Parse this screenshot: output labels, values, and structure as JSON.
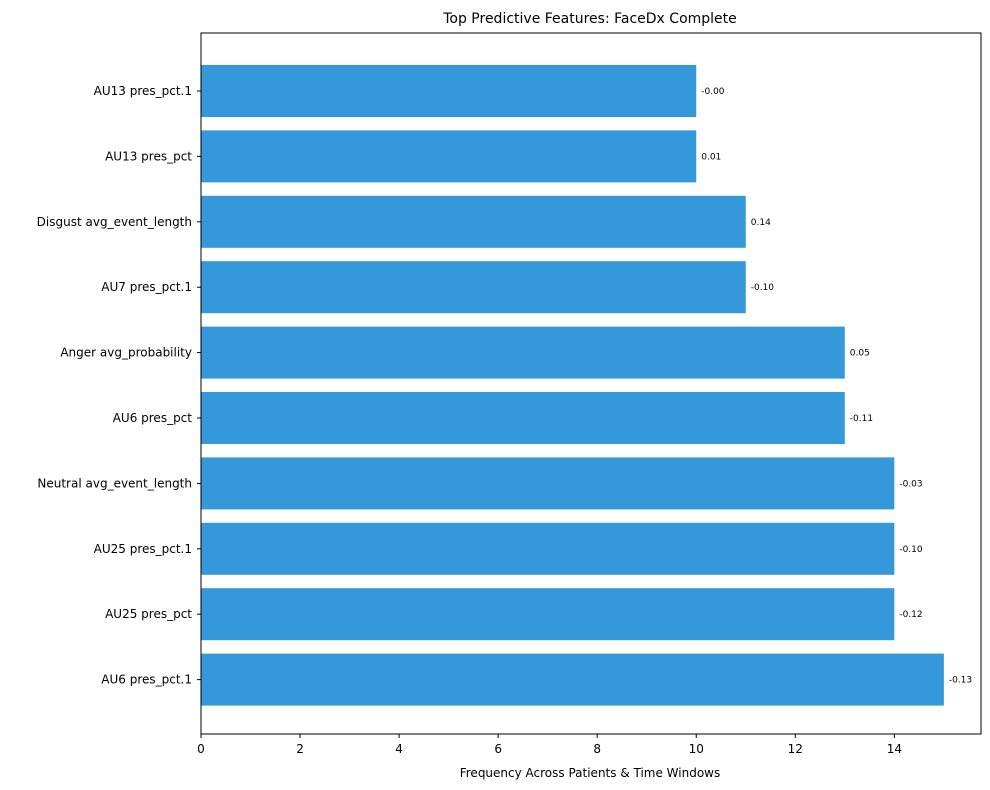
{
  "chart_data": {
    "type": "bar",
    "orientation": "horizontal",
    "title": "Top Predictive Features: FaceDx Complete",
    "xlabel": "Frequency Across Patients & Time Windows",
    "ylabel": "",
    "xlim": [
      0,
      15.75
    ],
    "xticks": [
      0,
      2,
      4,
      6,
      8,
      10,
      12,
      14
    ],
    "categories": [
      "AU13 pres_pct.1",
      "AU13 pres_pct",
      "Disgust avg_event_length",
      "AU7 pres_pct.1",
      "Anger avg_probability",
      "AU6 pres_pct",
      "Neutral avg_event_length",
      "AU25 pres_pct.1",
      "AU25 pres_pct",
      "AU6 pres_pct.1"
    ],
    "values": [
      10,
      10,
      11,
      11,
      13,
      13,
      14,
      14,
      14,
      15
    ],
    "bar_labels": [
      "-0.00",
      "0.01",
      "0.14",
      "-0.10",
      "0.05",
      "-0.11",
      "-0.03",
      "-0.10",
      "-0.12",
      "-0.13"
    ],
    "bar_color": "#3498db",
    "grid": false,
    "legend": "none"
  }
}
